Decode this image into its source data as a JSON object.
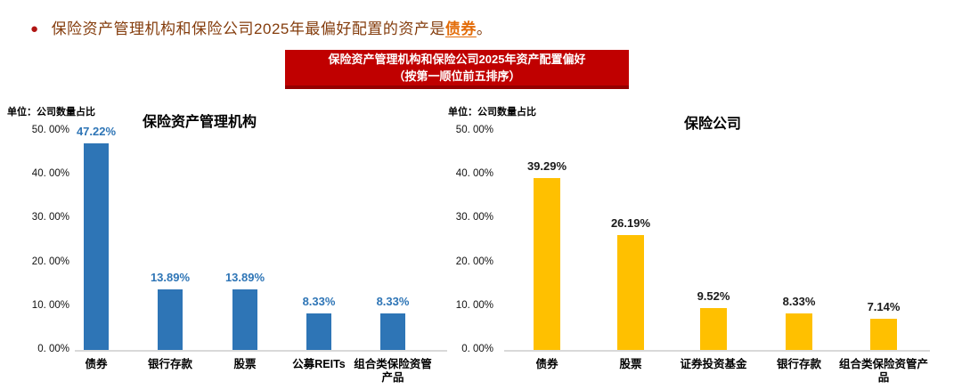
{
  "headline": {
    "bullet": "●",
    "text_before": "保险资产管理机构和保险公司2025年最偏好配置的资产是",
    "highlight": "债券",
    "text_after": "。"
  },
  "banner": {
    "line1": "保险资产管理机构和保险公司2025年资产配置偏好",
    "line2": "（按第一顺位前五排序）"
  },
  "colors": {
    "headline_text": "#843C0C",
    "headline_highlight": "#E36C09",
    "bullet": "#B01513",
    "banner_bg": "#C00000",
    "left_bar": "#2E75B6",
    "left_value_label": "#2E75B6",
    "right_bar": "#FFC000",
    "right_value_label": "#1A1A1A",
    "axis_line": "#D9D9D9"
  },
  "chart_data": [
    {
      "type": "bar",
      "title": "保险资产管理机构",
      "unit_label": "单位：公司数量占比",
      "categories": [
        "债券",
        "银行存款",
        "股票",
        "公募REITs",
        "组合类保险资管产品"
      ],
      "values": [
        47.22,
        13.89,
        13.89,
        8.33,
        8.33
      ],
      "value_labels": [
        "47.22%",
        "13.89%",
        "13.89%",
        "8.33%",
        "8.33%"
      ],
      "ylim": [
        0,
        50
      ],
      "ytick_values": [
        50,
        40,
        30,
        20,
        10,
        0
      ],
      "ytick_labels": [
        "50. 00%",
        "40. 00%",
        "30. 00%",
        "20. 00%",
        "10. 00%",
        "0. 00%"
      ],
      "bar_color": "#2E75B6",
      "value_label_color": "#2E75B6",
      "grid": false,
      "legend": "none"
    },
    {
      "type": "bar",
      "title": "保险公司",
      "unit_label": "单位：公司数量占比",
      "categories": [
        "债券",
        "股票",
        "证券投资基金",
        "银行存款",
        "组合类保险资管产品"
      ],
      "values": [
        39.29,
        26.19,
        9.52,
        8.33,
        7.14
      ],
      "value_labels": [
        "39.29%",
        "26.19%",
        "9.52%",
        "8.33%",
        "7.14%"
      ],
      "ylim": [
        0,
        50
      ],
      "ytick_values": [
        50,
        40,
        30,
        20,
        10,
        0
      ],
      "ytick_labels": [
        "50. 00%",
        "40. 00%",
        "30. 00%",
        "20. 00%",
        "10. 00%",
        "0. 00%"
      ],
      "bar_color": "#FFC000",
      "value_label_color": "#1A1A1A",
      "grid": false,
      "legend": "none"
    }
  ]
}
